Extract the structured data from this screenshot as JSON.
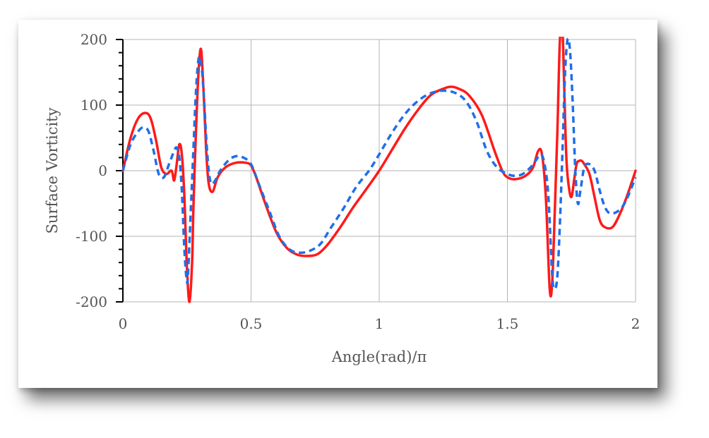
{
  "chart_data": {
    "type": "line",
    "title": "",
    "xlabel": "Angle(rad)/π",
    "ylabel": "Surface Vorticity",
    "xlim": [
      0,
      2
    ],
    "ylim": [
      -200,
      200
    ],
    "x_ticks": [
      "0",
      "0.5",
      "1",
      "1.5",
      "2"
    ],
    "y_ticks": [
      "200",
      "100",
      "0",
      "-100",
      "-200"
    ],
    "grid": true,
    "legend": "none",
    "series": [
      {
        "style": "solid",
        "color": "#ff1a1a",
        "x": [
          0,
          0.03,
          0.06,
          0.09,
          0.11,
          0.13,
          0.15,
          0.17,
          0.19,
          0.2,
          0.21,
          0.22,
          0.23,
          0.24,
          0.25,
          0.26,
          0.27,
          0.275,
          0.285,
          0.295,
          0.305,
          0.315,
          0.325,
          0.335,
          0.35,
          0.37,
          0.4,
          0.44,
          0.48,
          0.5,
          0.52,
          0.56,
          0.6,
          0.64,
          0.68,
          0.72,
          0.76,
          0.8,
          0.85,
          0.9,
          0.95,
          1.0,
          1.05,
          1.1,
          1.15,
          1.2,
          1.25,
          1.28,
          1.31,
          1.35,
          1.4,
          1.45,
          1.48,
          1.5,
          1.53,
          1.57,
          1.6,
          1.62,
          1.635,
          1.65,
          1.665,
          1.675,
          1.685,
          1.695,
          1.705,
          1.715,
          1.72,
          1.73,
          1.74,
          1.75,
          1.76,
          1.77,
          1.78,
          1.79,
          1.8,
          1.82,
          1.84,
          1.86,
          1.88,
          1.91,
          1.94,
          1.97,
          2.0
        ],
        "values": [
          0,
          50,
          80,
          88,
          78,
          45,
          5,
          -5,
          0,
          -15,
          10,
          40,
          25,
          -40,
          -150,
          -200,
          -140,
          -60,
          60,
          150,
          185,
          120,
          30,
          -20,
          -32,
          -10,
          5,
          12,
          12,
          8,
          -10,
          -55,
          -95,
          -118,
          -128,
          -130,
          -127,
          -112,
          -85,
          -55,
          -28,
          0,
          32,
          64,
          92,
          115,
          125,
          128,
          125,
          115,
          85,
          30,
          0,
          -10,
          -13,
          -8,
          5,
          30,
          25,
          -40,
          -180,
          -170,
          -60,
          60,
          200,
          210,
          150,
          20,
          -25,
          -40,
          -15,
          10,
          15,
          15,
          10,
          -5,
          -40,
          -75,
          -86,
          -86,
          -65,
          -35,
          0
        ]
      },
      {
        "style": "dashed",
        "color": "#1f6fe8",
        "x": [
          0,
          0.03,
          0.06,
          0.08,
          0.1,
          0.12,
          0.14,
          0.16,
          0.18,
          0.2,
          0.21,
          0.22,
          0.23,
          0.24,
          0.25,
          0.255,
          0.265,
          0.275,
          0.285,
          0.295,
          0.305,
          0.315,
          0.325,
          0.335,
          0.345,
          0.36,
          0.38,
          0.41,
          0.44,
          0.47,
          0.5,
          0.53,
          0.57,
          0.61,
          0.65,
          0.69,
          0.73,
          0.77,
          0.81,
          0.86,
          0.91,
          0.96,
          1.0,
          1.05,
          1.1,
          1.15,
          1.2,
          1.25,
          1.3,
          1.34,
          1.38,
          1.42,
          1.46,
          1.5,
          1.53,
          1.56,
          1.59,
          1.61,
          1.63,
          1.645,
          1.66,
          1.675,
          1.685,
          1.695,
          1.705,
          1.715,
          1.725,
          1.735,
          1.745,
          1.755,
          1.765,
          1.775,
          1.785,
          1.8,
          1.82,
          1.84,
          1.86,
          1.88,
          1.9,
          1.93,
          1.96,
          2.0
        ],
        "values": [
          0,
          40,
          60,
          66,
          60,
          30,
          -5,
          -10,
          10,
          30,
          35,
          20,
          -30,
          -120,
          -170,
          -150,
          -60,
          30,
          120,
          170,
          165,
          120,
          50,
          0,
          -20,
          -15,
          0,
          15,
          22,
          20,
          10,
          -20,
          -60,
          -100,
          -120,
          -125,
          -122,
          -112,
          -88,
          -58,
          -25,
          0,
          25,
          58,
          86,
          106,
          118,
          122,
          118,
          105,
          75,
          30,
          5,
          -5,
          -8,
          -5,
          5,
          15,
          25,
          10,
          -40,
          -160,
          -180,
          -160,
          -80,
          30,
          150,
          200,
          180,
          100,
          0,
          -50,
          -30,
          5,
          10,
          0,
          -30,
          -55,
          -65,
          -62,
          -48,
          -10
        ]
      }
    ]
  }
}
